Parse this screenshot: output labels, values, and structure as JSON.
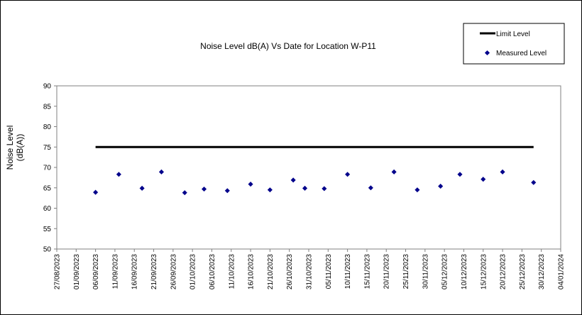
{
  "chart_data": {
    "type": "scatter",
    "title": "Noise Level dB(A) Vs Date for Location W-P11",
    "xlabel": "",
    "ylabel": [
      "Noise Level",
      "(dB(A))"
    ],
    "ylim": [
      50,
      90
    ],
    "yticks": [
      50,
      55,
      60,
      65,
      70,
      75,
      80,
      85,
      90
    ],
    "xlim": [
      "2023-08-27",
      "2024-01-04"
    ],
    "xticks": [
      "27/08/2023",
      "01/09/2023",
      "06/09/2023",
      "11/09/2023",
      "16/09/2023",
      "21/09/2023",
      "26/09/2023",
      "01/10/2023",
      "06/10/2023",
      "11/10/2023",
      "16/10/2023",
      "21/10/2023",
      "26/10/2023",
      "31/10/2023",
      "05/11/2023",
      "10/11/2023",
      "15/11/2023",
      "20/11/2023",
      "25/11/2023",
      "30/11/2023",
      "05/12/2023",
      "10/12/2023",
      "15/12/2023",
      "20/12/2023",
      "25/12/2023",
      "30/12/2023",
      "04/01/2024"
    ],
    "grid": false,
    "legend_position": "top-right",
    "series": [
      {
        "name": "Limit Level",
        "type": "line",
        "color": "#000000",
        "x": [
          "2023-09-06",
          "2023-12-28"
        ],
        "y": [
          75,
          75
        ]
      },
      {
        "name": "Measured Level",
        "type": "scatter",
        "color": "#00008B",
        "x": [
          "2023-09-06",
          "2023-09-12",
          "2023-09-18",
          "2023-09-23",
          "2023-09-29",
          "2023-10-04",
          "2023-10-10",
          "2023-10-16",
          "2023-10-21",
          "2023-10-27",
          "2023-10-30",
          "2023-11-04",
          "2023-11-10",
          "2023-11-16",
          "2023-11-22",
          "2023-11-28",
          "2023-12-04",
          "2023-12-09",
          "2023-12-15",
          "2023-12-20",
          "2023-12-28"
        ],
        "y": [
          63.9,
          68.3,
          64.9,
          68.9,
          63.8,
          64.7,
          64.3,
          65.9,
          64.5,
          66.9,
          64.9,
          64.8,
          68.3,
          65.0,
          68.9,
          64.5,
          65.4,
          68.3,
          67.1,
          68.9,
          66.3
        ]
      }
    ]
  }
}
